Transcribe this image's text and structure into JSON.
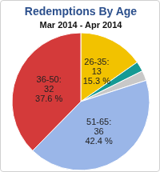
{
  "chart_data": {
    "type": "pie",
    "title": "Redemptions By Age",
    "subtitle": "Mar 2014 - Apr 2014",
    "categories": [
      "26-35:",
      null,
      null,
      "51-65:",
      "36-50:"
    ],
    "values": [
      13,
      2,
      2,
      36,
      32
    ],
    "percent_labels": [
      "15.3 %",
      null,
      null,
      "42.4 %",
      "37.6 %"
    ],
    "colors": [
      "#f2c200",
      "#159a94",
      "#c8c8c8",
      "#9ab6e8",
      "#d43a3a"
    ],
    "data_labels": true
  }
}
